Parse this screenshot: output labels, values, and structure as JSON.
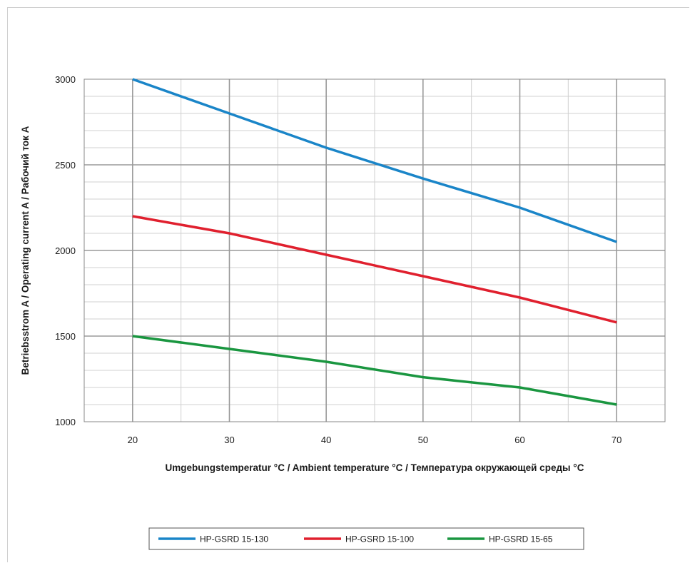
{
  "chart_data": {
    "type": "line",
    "title": "",
    "xlabel": "Umgebungstemperatur °C / Ambient temperature °C / Температура окружающей среды °C",
    "ylabel": "Betriebsstrom A / Operating current A / Рабочий ток A",
    "x": [
      20,
      30,
      40,
      50,
      60,
      70
    ],
    "xlim": [
      15,
      75
    ],
    "ylim": [
      1000,
      3000
    ],
    "x_ticks": [
      "20",
      "30",
      "40",
      "50",
      "60",
      "70"
    ],
    "y_ticks": [
      "1000",
      "1500",
      "2000",
      "2500",
      "3000"
    ],
    "grid": true,
    "legend_position": "bottom",
    "series": [
      {
        "name": "HP-GSRD 15-130",
        "color": "#1a85c8",
        "values": [
          3000,
          2800,
          2600,
          2420,
          2250,
          2050
        ]
      },
      {
        "name": "HP-GSRD 15-100",
        "color": "#e0202e",
        "values": [
          2200,
          2100,
          1975,
          1850,
          1725,
          1580
        ]
      },
      {
        "name": "HP-GSRD 15-65",
        "color": "#1a9640",
        "values": [
          1500,
          1425,
          1350,
          1260,
          1200,
          1100
        ]
      }
    ]
  }
}
